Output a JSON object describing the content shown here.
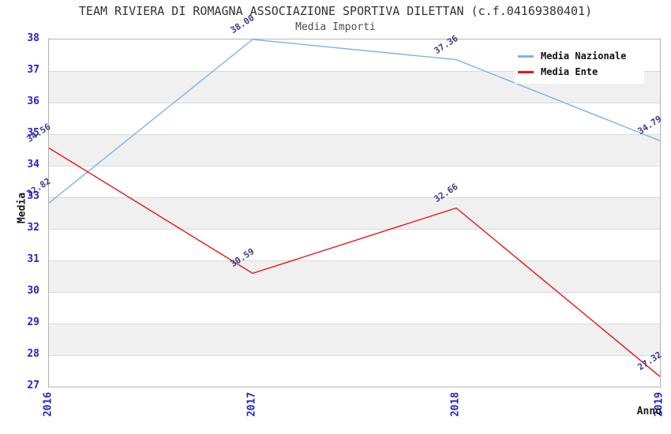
{
  "chart_data": {
    "type": "line",
    "title": "TEAM RIVIERA DI ROMAGNA ASSOCIAZIONE SPORTIVA DILETTAN (c.f.04169380401)",
    "subtitle": "Media Importi",
    "xlabel": "Anno",
    "ylabel": "Media",
    "categories": [
      "2016",
      "2017",
      "2018",
      "2019"
    ],
    "ylim": [
      27,
      38
    ],
    "ytick_step": 1,
    "grid": "horizontal",
    "alternating_bands": true,
    "legend_position": "top-right",
    "series": [
      {
        "name": "Media Nazionale",
        "color": "#7fb2e5",
        "values": [
          32.82,
          38.0,
          37.36,
          34.79
        ]
      },
      {
        "name": "Media Ente",
        "color": "#ee1111",
        "values": [
          34.56,
          30.59,
          32.66,
          27.32
        ]
      }
    ],
    "colors": {
      "tick_label": "#2323cc",
      "value_label": "#3b3b8f",
      "band": "#f0f0f0",
      "grid": "#dadada",
      "border": "#b3b3b3",
      "title": "#333333",
      "subtitle": "#4d4d4d"
    }
  }
}
